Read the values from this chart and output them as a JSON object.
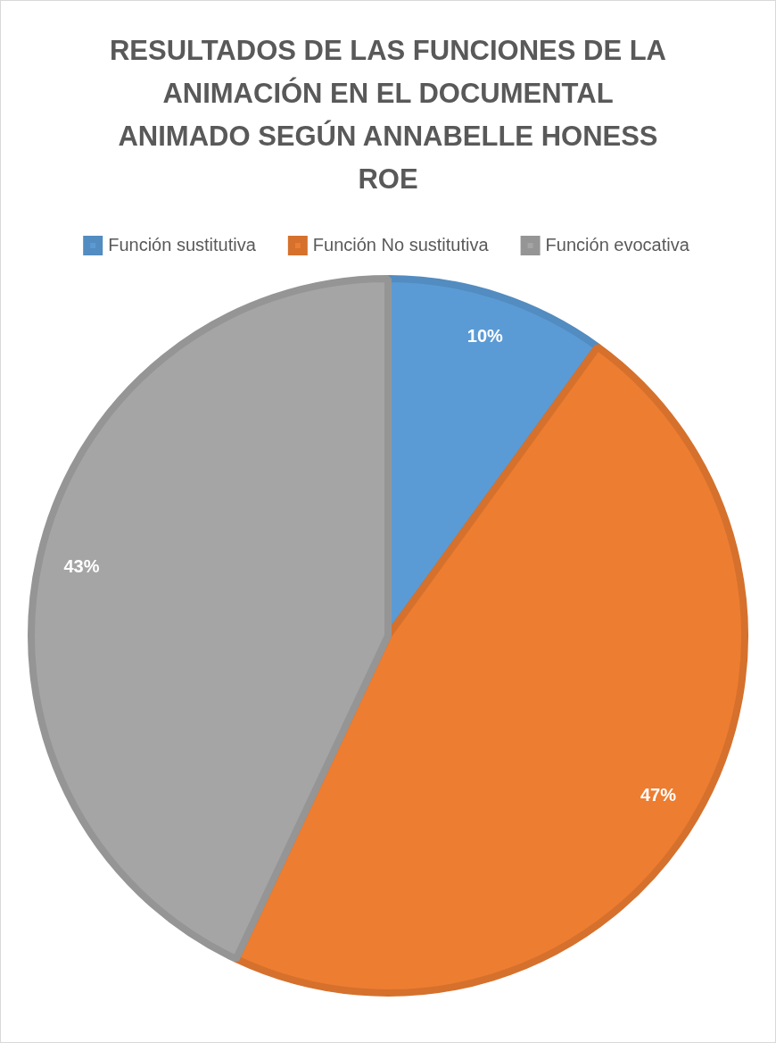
{
  "chart_data": {
    "type": "pie",
    "title": "RESULTADOS DE LAS FUNCIONES DE LA ANIMACIÓN EN EL DOCUMENTAL ANIMADO SEGÚN ANNABELLE HONESS ROE",
    "categories": [
      "Función sustitutiva",
      "Función No sustitutiva",
      "Función evocativa"
    ],
    "values": [
      10,
      47,
      43
    ],
    "colors": [
      "#5b9bd5",
      "#ed7d31",
      "#a5a5a5"
    ],
    "value_labels": [
      "10%",
      "47%",
      "43%"
    ],
    "legend": "top"
  }
}
